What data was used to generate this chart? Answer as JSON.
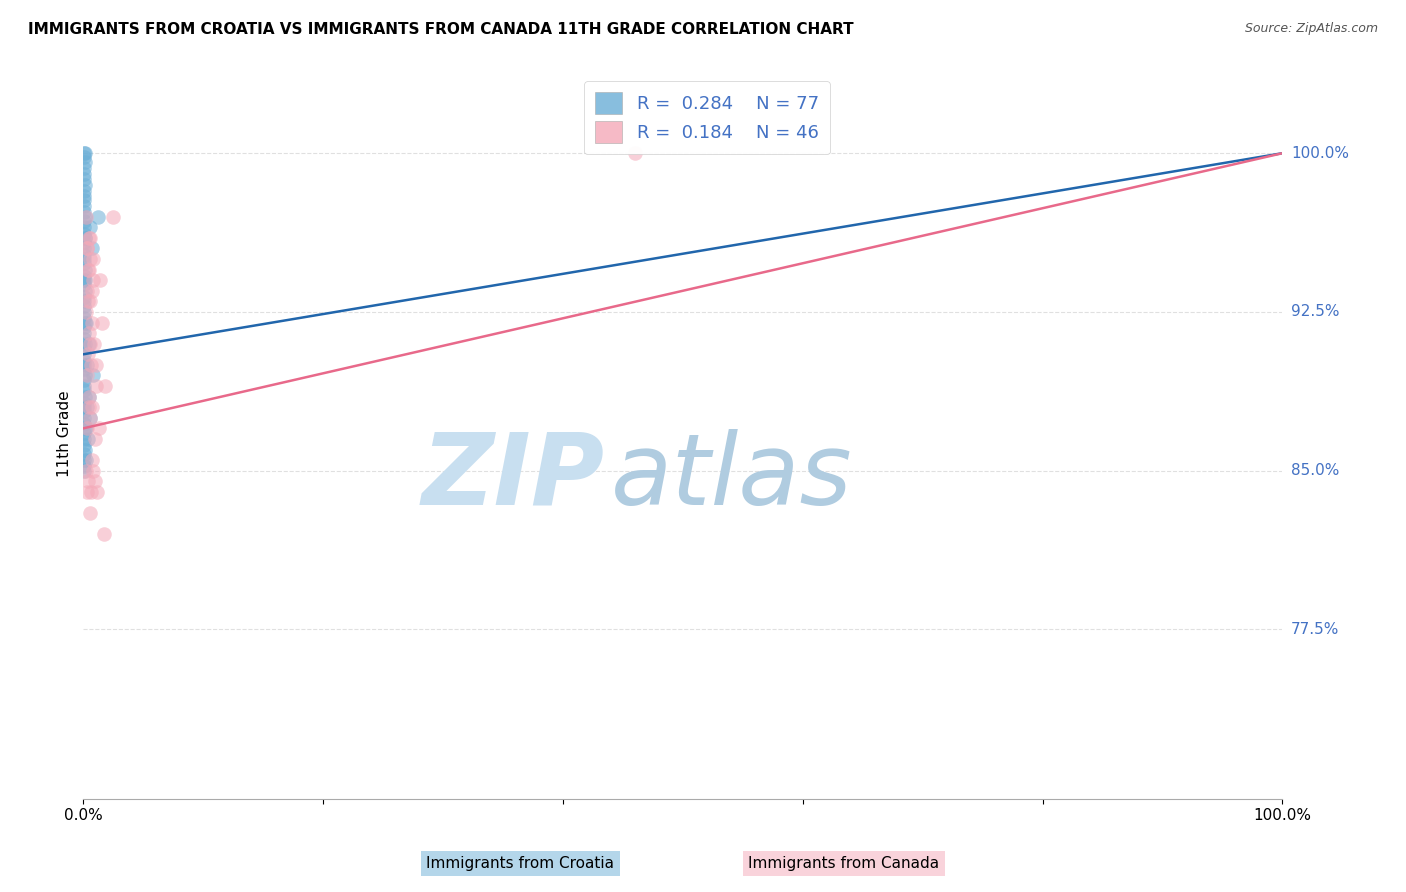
{
  "title": "IMMIGRANTS FROM CROATIA VS IMMIGRANTS FROM CANADA 11TH GRADE CORRELATION CHART",
  "source": "Source: ZipAtlas.com",
  "ylabel": "11th Grade",
  "ytick_labels": [
    "77.5%",
    "85.0%",
    "92.5%",
    "100.0%"
  ],
  "ytick_values": [
    0.775,
    0.85,
    0.925,
    1.0
  ],
  "xlim": [
    0.0,
    1.0
  ],
  "ylim": [
    0.695,
    1.04
  ],
  "legend_r1": "R = 0.284",
  "legend_n1": "N = 77",
  "legend_r2": "R = 0.184",
  "legend_n2": "N = 46",
  "r_croatia": 0.284,
  "r_canada": 0.184,
  "color_croatia": "#6baed6",
  "color_canada": "#f4a9b8",
  "color_line_croatia": "#2166ac",
  "color_line_canada": "#e8698a",
  "watermark_zip": "ZIP",
  "watermark_atlas": "atlas",
  "watermark_color_zip": "#c8dff0",
  "watermark_color_atlas": "#b0cce0",
  "grid_color": "#e0e0e0",
  "title_fontsize": 11,
  "source_fontsize": 9,
  "scatter_croatia_x": [
    0.0008,
    0.0012,
    0.0008,
    0.0015,
    0.0009,
    0.001,
    0.0008,
    0.0011,
    0.0009,
    0.0008,
    0.001,
    0.0009,
    0.0008,
    0.0012,
    0.0009,
    0.001,
    0.0008,
    0.0011,
    0.0009,
    0.0008,
    0.001,
    0.0009,
    0.0008,
    0.0012,
    0.0009,
    0.001,
    0.0008,
    0.0011,
    0.0009,
    0.0008,
    0.001,
    0.0009,
    0.0008,
    0.0012,
    0.0009,
    0.001,
    0.0008,
    0.0011,
    0.0009,
    0.0008,
    0.001,
    0.0009,
    0.0008,
    0.0012,
    0.0009,
    0.001,
    0.0008,
    0.0011,
    0.0009,
    0.0008,
    0.001,
    0.0009,
    0.0008,
    0.0012,
    0.0009,
    0.001,
    0.0008,
    0.0011,
    0.0009,
    0.0008,
    0.001,
    0.0009,
    0.005,
    0.008,
    0.012,
    0.006,
    0.004,
    0.003,
    0.0025,
    0.002,
    0.0015,
    0.0018,
    0.0022,
    0.0035,
    0.0055,
    0.007,
    0.0045
  ],
  "scatter_croatia_y": [
    1.0,
    1.0,
    0.998,
    0.996,
    0.993,
    0.99,
    0.988,
    0.985,
    0.982,
    0.98,
    0.978,
    0.975,
    0.972,
    0.97,
    0.968,
    0.965,
    0.962,
    0.96,
    0.958,
    0.955,
    0.952,
    0.95,
    0.948,
    0.945,
    0.942,
    0.94,
    0.938,
    0.935,
    0.932,
    0.93,
    0.928,
    0.925,
    0.922,
    0.92,
    0.918,
    0.915,
    0.912,
    0.91,
    0.908,
    0.905,
    0.902,
    0.9,
    0.898,
    0.895,
    0.893,
    0.89,
    0.888,
    0.885,
    0.882,
    0.88,
    0.878,
    0.875,
    0.872,
    0.87,
    0.868,
    0.865,
    0.862,
    0.86,
    0.858,
    0.855,
    0.852,
    0.85,
    0.91,
    0.895,
    0.97,
    0.875,
    0.865,
    0.88,
    0.87,
    0.855,
    0.96,
    0.94,
    0.92,
    0.9,
    0.965,
    0.955,
    0.885
  ],
  "scatter_canada_x": [
    0.002,
    0.0045,
    0.003,
    0.006,
    0.004,
    0.008,
    0.0035,
    0.0055,
    0.0025,
    0.007,
    0.005,
    0.009,
    0.004,
    0.0065,
    0.003,
    0.011,
    0.0045,
    0.0075,
    0.0055,
    0.0035,
    0.0095,
    0.006,
    0.003,
    0.0085,
    0.005,
    0.014,
    0.007,
    0.004,
    0.016,
    0.0055,
    0.011,
    0.018,
    0.0045,
    0.013,
    0.0075,
    0.0025,
    0.0095,
    0.0065,
    0.025,
    0.008,
    0.0035,
    0.0115,
    0.017,
    0.006,
    0.004,
    0.46
  ],
  "scatter_canada_y": [
    0.97,
    0.96,
    0.955,
    0.95,
    0.945,
    0.94,
    0.935,
    0.93,
    0.925,
    0.92,
    0.915,
    0.91,
    0.905,
    0.9,
    0.895,
    0.89,
    0.885,
    0.88,
    0.875,
    0.87,
    0.865,
    0.96,
    0.955,
    0.95,
    0.945,
    0.94,
    0.935,
    0.93,
    0.92,
    0.91,
    0.9,
    0.89,
    0.88,
    0.87,
    0.855,
    0.85,
    0.845,
    0.84,
    0.97,
    0.85,
    0.84,
    0.84,
    0.82,
    0.83,
    0.845,
    1.0
  ],
  "line_croatia_x0": 0.0,
  "line_croatia_y0": 0.905,
  "line_croatia_x1": 1.0,
  "line_croatia_y1": 1.0,
  "line_canada_x0": 0.0,
  "line_canada_y0": 0.87,
  "line_canada_x1": 1.0,
  "line_canada_y1": 1.0
}
